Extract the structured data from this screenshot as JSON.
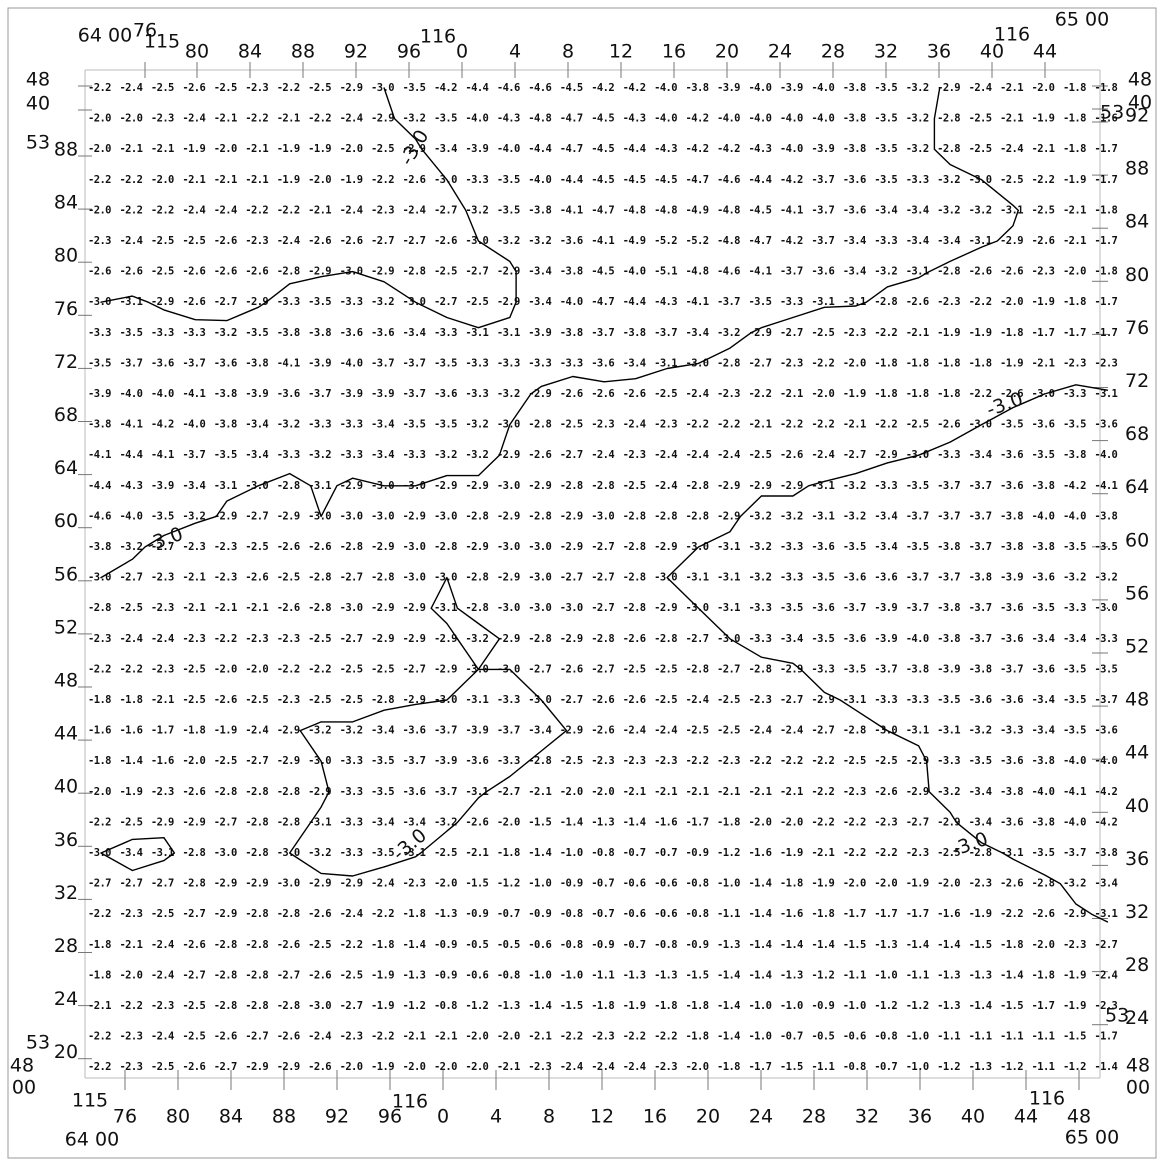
{
  "frame": {
    "top_corners": {
      "left": "64 00",
      "right": "65 00"
    },
    "bottom_corners": {
      "left": "64 00",
      "right": "65 00"
    },
    "top_degree_labels": [
      "115",
      "116",
      "116"
    ],
    "bottom_degree_labels": [
      "115",
      "116",
      "116"
    ],
    "top_x_labels": [
      "76",
      "80",
      "84",
      "88",
      "92",
      "96",
      "0",
      "4",
      "8",
      "12",
      "16",
      "20",
      "24",
      "28",
      "32",
      "36",
      "40",
      "44"
    ],
    "bottom_x_labels": [
      "76",
      "80",
      "84",
      "88",
      "92",
      "96",
      "0",
      "4",
      "8",
      "12",
      "16",
      "20",
      "24",
      "28",
      "32",
      "36",
      "40",
      "44",
      "48"
    ],
    "left_labels": [
      "48",
      "40",
      "88",
      "84",
      "80",
      "76",
      "72",
      "68",
      "64",
      "60",
      "56",
      "52",
      "48",
      "44",
      "40",
      "36",
      "32",
      "28",
      "24",
      "20"
    ],
    "right_labels": [
      "48",
      "40",
      "92",
      "88",
      "84",
      "80",
      "76",
      "72",
      "68",
      "64",
      "60",
      "56",
      "52",
      "48",
      "44",
      "40",
      "36",
      "32",
      "28",
      "24"
    ],
    "left_degree_labels": [
      "53",
      "53"
    ],
    "right_degree_labels": [
      "53",
      "53"
    ],
    "left_bottom_corner": [
      "48",
      "00"
    ],
    "right_bottom_corner": [
      "48",
      "00"
    ]
  },
  "contour_levels": [
    {
      "value": -3,
      "label": "-3.0"
    }
  ],
  "grid": {
    "rows": [
      [
        "-2.2",
        "-2.4",
        "-2.5",
        "-2.6",
        "-2.5",
        "-2.3",
        "-2.2",
        "-2.5",
        "-2.9",
        "-3.0",
        "-3.5",
        "-4.2",
        "-4.4",
        "-4.6",
        "-4.6",
        "-4.5",
        "-4.2",
        "-4.2",
        "-4.0",
        "-3.8",
        "-3.9",
        "-4.0",
        "-3.9",
        "-4.0",
        "-3.8",
        "-3.5",
        "-3.2",
        "-2.9",
        "-2.4",
        "-2.1",
        "-2.0",
        "-1.8",
        "-1.8"
      ],
      [
        "-2.0",
        "-2.0",
        "-2.3",
        "-2.4",
        "-2.1",
        "-2.2",
        "-2.1",
        "-2.2",
        "-2.4",
        "-2.9",
        "-3.2",
        "-3.5",
        "-4.0",
        "-4.3",
        "-4.8",
        "-4.7",
        "-4.5",
        "-4.3",
        "-4.0",
        "-4.2",
        "-4.0",
        "-4.0",
        "-4.0",
        "-4.0",
        "-3.8",
        "-3.5",
        "-3.2",
        "-2.8",
        "-2.5",
        "-2.1",
        "-1.9",
        "-1.8",
        "-1.6"
      ],
      [
        "-2.0",
        "-2.1",
        "-2.1",
        "-1.9",
        "-2.0",
        "-2.1",
        "-1.9",
        "-1.9",
        "-2.0",
        "-2.5",
        "-2.9",
        "-3.4",
        "-3.9",
        "-4.0",
        "-4.4",
        "-4.7",
        "-4.5",
        "-4.4",
        "-4.3",
        "-4.2",
        "-4.2",
        "-4.3",
        "-4.0",
        "-3.9",
        "-3.8",
        "-3.5",
        "-3.2",
        "-2.8",
        "-2.5",
        "-2.4",
        "-2.1",
        "-1.8",
        "-1.7"
      ],
      [
        "-2.2",
        "-2.2",
        "-2.0",
        "-2.1",
        "-2.1",
        "-2.1",
        "-1.9",
        "-2.0",
        "-1.9",
        "-2.2",
        "-2.6",
        "-3.0",
        "-3.3",
        "-3.5",
        "-4.0",
        "-4.4",
        "-4.5",
        "-4.5",
        "-4.5",
        "-4.7",
        "-4.6",
        "-4.4",
        "-4.2",
        "-3.7",
        "-3.6",
        "-3.5",
        "-3.3",
        "-3.2",
        "-3.0",
        "-2.5",
        "-2.2",
        "-1.9",
        "-1.7"
      ],
      [
        "-2.0",
        "-2.2",
        "-2.2",
        "-2.4",
        "-2.4",
        "-2.2",
        "-2.2",
        "-2.1",
        "-2.4",
        "-2.3",
        "-2.4",
        "-2.7",
        "-3.2",
        "-3.5",
        "-3.8",
        "-4.1",
        "-4.7",
        "-4.8",
        "-4.8",
        "-4.9",
        "-4.8",
        "-4.5",
        "-4.1",
        "-3.7",
        "-3.6",
        "-3.4",
        "-3.4",
        "-3.2",
        "-3.2",
        "-3.1",
        "-2.5",
        "-2.1",
        "-1.8"
      ],
      [
        "-2.3",
        "-2.4",
        "-2.5",
        "-2.5",
        "-2.6",
        "-2.3",
        "-2.4",
        "-2.6",
        "-2.6",
        "-2.7",
        "-2.7",
        "-2.6",
        "-3.0",
        "-3.2",
        "-3.2",
        "-3.6",
        "-4.1",
        "-4.9",
        "-5.2",
        "-5.2",
        "-4.8",
        "-4.7",
        "-4.2",
        "-3.7",
        "-3.4",
        "-3.3",
        "-3.4",
        "-3.4",
        "-3.1",
        "-2.9",
        "-2.6",
        "-2.1",
        "-1.7"
      ],
      [
        "-2.6",
        "-2.6",
        "-2.5",
        "-2.6",
        "-2.6",
        "-2.6",
        "-2.8",
        "-2.9",
        "-3.0",
        "-2.9",
        "-2.8",
        "-2.5",
        "-2.7",
        "-2.9",
        "-3.4",
        "-3.8",
        "-4.5",
        "-4.0",
        "-5.1",
        "-4.8",
        "-4.6",
        "-4.1",
        "-3.7",
        "-3.6",
        "-3.4",
        "-3.2",
        "-3.1",
        "-2.8",
        "-2.6",
        "-2.6",
        "-2.3",
        "-2.0",
        "-1.8"
      ],
      [
        "-3.0",
        "-3.1",
        "-2.9",
        "-2.6",
        "-2.7",
        "-2.9",
        "-3.3",
        "-3.5",
        "-3.3",
        "-3.2",
        "-3.0",
        "-2.7",
        "-2.5",
        "-2.9",
        "-3.4",
        "-4.0",
        "-4.7",
        "-4.4",
        "-4.3",
        "-4.1",
        "-3.7",
        "-3.5",
        "-3.3",
        "-3.1",
        "-3.1",
        "-2.8",
        "-2.6",
        "-2.3",
        "-2.2",
        "-2.0",
        "-1.9",
        "-1.8",
        "-1.7"
      ],
      [
        "-3.3",
        "-3.5",
        "-3.3",
        "-3.3",
        "-3.2",
        "-3.5",
        "-3.8",
        "-3.8",
        "-3.6",
        "-3.6",
        "-3.4",
        "-3.3",
        "-3.1",
        "-3.1",
        "-3.9",
        "-3.8",
        "-3.7",
        "-3.8",
        "-3.7",
        "-3.4",
        "-3.2",
        "-2.9",
        "-2.7",
        "-2.5",
        "-2.3",
        "-2.2",
        "-2.1",
        "-1.9",
        "-1.9",
        "-1.8",
        "-1.7",
        "-1.7",
        "-1.7"
      ],
      [
        "-3.5",
        "-3.7",
        "-3.6",
        "-3.7",
        "-3.6",
        "-3.8",
        "-4.1",
        "-3.9",
        "-4.0",
        "-3.7",
        "-3.7",
        "-3.5",
        "-3.3",
        "-3.3",
        "-3.3",
        "-3.3",
        "-3.6",
        "-3.4",
        "-3.1",
        "-3.0",
        "-2.8",
        "-2.7",
        "-2.3",
        "-2.2",
        "-2.0",
        "-1.8",
        "-1.8",
        "-1.8",
        "-1.8",
        "-1.9",
        "-2.1",
        "-2.3",
        "-2.3"
      ],
      [
        "-3.9",
        "-4.0",
        "-4.0",
        "-4.1",
        "-3.8",
        "-3.9",
        "-3.6",
        "-3.7",
        "-3.9",
        "-3.9",
        "-3.7",
        "-3.6",
        "-3.3",
        "-3.2",
        "-2.9",
        "-2.6",
        "-2.6",
        "-2.6",
        "-2.5",
        "-2.4",
        "-2.3",
        "-2.2",
        "-2.1",
        "-2.0",
        "-1.9",
        "-1.8",
        "-1.8",
        "-1.8",
        "-2.2",
        "-2.6",
        "-3.0",
        "-3.3",
        "-3.1"
      ],
      [
        "-3.8",
        "-4.1",
        "-4.2",
        "-4.0",
        "-3.8",
        "-3.4",
        "-3.2",
        "-3.3",
        "-3.3",
        "-3.4",
        "-3.5",
        "-3.5",
        "-3.2",
        "-3.0",
        "-2.8",
        "-2.5",
        "-2.3",
        "-2.4",
        "-2.3",
        "-2.2",
        "-2.2",
        "-2.1",
        "-2.2",
        "-2.2",
        "-2.1",
        "-2.2",
        "-2.5",
        "-2.6",
        "-3.0",
        "-3.5",
        "-3.6",
        "-3.5",
        "-3.6"
      ],
      [
        "-4.1",
        "-4.4",
        "-4.1",
        "-3.7",
        "-3.5",
        "-3.4",
        "-3.3",
        "-3.2",
        "-3.3",
        "-3.4",
        "-3.3",
        "-3.2",
        "-3.2",
        "-2.9",
        "-2.6",
        "-2.7",
        "-2.4",
        "-2.3",
        "-2.4",
        "-2.4",
        "-2.4",
        "-2.5",
        "-2.6",
        "-2.4",
        "-2.7",
        "-2.9",
        "-3.0",
        "-3.3",
        "-3.4",
        "-3.6",
        "-3.5",
        "-3.8",
        "-4.0"
      ],
      [
        "-4.4",
        "-4.3",
        "-3.9",
        "-3.4",
        "-3.1",
        "-3.0",
        "-2.8",
        "-3.1",
        "-2.9",
        "-3.0",
        "-3.0",
        "-2.9",
        "-2.9",
        "-3.0",
        "-2.9",
        "-2.8",
        "-2.8",
        "-2.5",
        "-2.4",
        "-2.8",
        "-2.9",
        "-2.9",
        "-2.9",
        "-3.1",
        "-3.2",
        "-3.3",
        "-3.5",
        "-3.7",
        "-3.7",
        "-3.6",
        "-3.8",
        "-4.2",
        "-4.1"
      ],
      [
        "-4.6",
        "-4.0",
        "-3.5",
        "-3.2",
        "-2.9",
        "-2.7",
        "-2.9",
        "-3.0",
        "-3.0",
        "-3.0",
        "-2.9",
        "-3.0",
        "-2.8",
        "-2.9",
        "-2.8",
        "-2.9",
        "-3.0",
        "-2.8",
        "-2.8",
        "-2.8",
        "-2.9",
        "-3.2",
        "-3.2",
        "-3.1",
        "-3.2",
        "-3.4",
        "-3.7",
        "-3.7",
        "-3.7",
        "-3.8",
        "-4.0",
        "-4.0",
        "-3.8"
      ],
      [
        "-3.8",
        "-3.2",
        "-2.7",
        "-2.3",
        "-2.3",
        "-2.5",
        "-2.6",
        "-2.6",
        "-2.8",
        "-2.9",
        "-3.0",
        "-2.8",
        "-2.9",
        "-3.0",
        "-3.0",
        "-2.9",
        "-2.7",
        "-2.8",
        "-2.9",
        "-3.0",
        "-3.1",
        "-3.2",
        "-3.3",
        "-3.6",
        "-3.5",
        "-3.4",
        "-3.5",
        "-3.8",
        "-3.7",
        "-3.8",
        "-3.8",
        "-3.5",
        "-3.5"
      ],
      [
        "-3.0",
        "-2.7",
        "-2.3",
        "-2.1",
        "-2.3",
        "-2.6",
        "-2.5",
        "-2.8",
        "-2.7",
        "-2.8",
        "-3.0",
        "-3.0",
        "-2.8",
        "-2.9",
        "-3.0",
        "-2.7",
        "-2.7",
        "-2.8",
        "-3.0",
        "-3.1",
        "-3.1",
        "-3.2",
        "-3.3",
        "-3.5",
        "-3.6",
        "-3.6",
        "-3.7",
        "-3.7",
        "-3.8",
        "-3.9",
        "-3.6",
        "-3.2",
        "-3.2"
      ],
      [
        "-2.8",
        "-2.5",
        "-2.3",
        "-2.1",
        "-2.1",
        "-2.1",
        "-2.6",
        "-2.8",
        "-3.0",
        "-2.9",
        "-2.9",
        "-3.1",
        "-2.8",
        "-3.0",
        "-3.0",
        "-3.0",
        "-2.7",
        "-2.8",
        "-2.9",
        "-3.0",
        "-3.1",
        "-3.3",
        "-3.5",
        "-3.6",
        "-3.7",
        "-3.9",
        "-3.7",
        "-3.8",
        "-3.7",
        "-3.6",
        "-3.5",
        "-3.3",
        "-3.0"
      ],
      [
        "-2.3",
        "-2.4",
        "-2.4",
        "-2.3",
        "-2.2",
        "-2.3",
        "-2.3",
        "-2.5",
        "-2.7",
        "-2.9",
        "-2.9",
        "-2.9",
        "-3.2",
        "-2.9",
        "-2.8",
        "-2.9",
        "-2.8",
        "-2.6",
        "-2.8",
        "-2.7",
        "-3.0",
        "-3.3",
        "-3.4",
        "-3.5",
        "-3.6",
        "-3.9",
        "-4.0",
        "-3.8",
        "-3.7",
        "-3.6",
        "-3.4",
        "-3.4",
        "-3.3"
      ],
      [
        "-2.2",
        "-2.2",
        "-2.3",
        "-2.5",
        "-2.0",
        "-2.0",
        "-2.2",
        "-2.2",
        "-2.5",
        "-2.5",
        "-2.7",
        "-2.9",
        "-3.0",
        "-3.0",
        "-2.7",
        "-2.6",
        "-2.7",
        "-2.5",
        "-2.5",
        "-2.8",
        "-2.7",
        "-2.8",
        "-2.9",
        "-3.3",
        "-3.5",
        "-3.7",
        "-3.8",
        "-3.9",
        "-3.8",
        "-3.7",
        "-3.6",
        "-3.5",
        "-3.5"
      ],
      [
        "-1.8",
        "-1.8",
        "-2.1",
        "-2.5",
        "-2.6",
        "-2.5",
        "-2.3",
        "-2.5",
        "-2.5",
        "-2.8",
        "-2.9",
        "-3.0",
        "-3.1",
        "-3.3",
        "-3.0",
        "-2.7",
        "-2.6",
        "-2.6",
        "-2.5",
        "-2.4",
        "-2.5",
        "-2.3",
        "-2.7",
        "-2.9",
        "-3.1",
        "-3.3",
        "-3.3",
        "-3.5",
        "-3.6",
        "-3.6",
        "-3.4",
        "-3.5",
        "-3.7"
      ],
      [
        "-1.6",
        "-1.6",
        "-1.7",
        "-1.8",
        "-1.9",
        "-2.4",
        "-2.9",
        "-3.2",
        "-3.2",
        "-3.4",
        "-3.6",
        "-3.7",
        "-3.9",
        "-3.7",
        "-3.4",
        "-2.9",
        "-2.6",
        "-2.4",
        "-2.4",
        "-2.5",
        "-2.5",
        "-2.4",
        "-2.4",
        "-2.7",
        "-2.8",
        "-3.0",
        "-3.1",
        "-3.1",
        "-3.2",
        "-3.3",
        "-3.4",
        "-3.5",
        "-3.6"
      ],
      [
        "-1.8",
        "-1.4",
        "-1.6",
        "-2.0",
        "-2.5",
        "-2.7",
        "-2.9",
        "-3.0",
        "-3.3",
        "-3.5",
        "-3.7",
        "-3.9",
        "-3.6",
        "-3.3",
        "-2.8",
        "-2.5",
        "-2.3",
        "-2.3",
        "-2.3",
        "-2.2",
        "-2.3",
        "-2.2",
        "-2.2",
        "-2.2",
        "-2.5",
        "-2.5",
        "-2.9",
        "-3.3",
        "-3.5",
        "-3.6",
        "-3.8",
        "-4.0",
        "-4.0"
      ],
      [
        "-2.0",
        "-1.9",
        "-2.3",
        "-2.6",
        "-2.8",
        "-2.8",
        "-2.8",
        "-2.9",
        "-3.3",
        "-3.5",
        "-3.6",
        "-3.7",
        "-3.1",
        "-2.7",
        "-2.1",
        "-2.0",
        "-2.0",
        "-2.1",
        "-2.1",
        "-2.1",
        "-2.1",
        "-2.1",
        "-2.1",
        "-2.2",
        "-2.3",
        "-2.6",
        "-2.9",
        "-3.2",
        "-3.4",
        "-3.8",
        "-4.0",
        "-4.1",
        "-4.2"
      ],
      [
        "-2.2",
        "-2.5",
        "-2.9",
        "-2.9",
        "-2.7",
        "-2.8",
        "-2.8",
        "-3.1",
        "-3.3",
        "-3.4",
        "-3.4",
        "-3.2",
        "-2.6",
        "-2.0",
        "-1.5",
        "-1.4",
        "-1.3",
        "-1.4",
        "-1.6",
        "-1.7",
        "-1.8",
        "-2.0",
        "-2.0",
        "-2.2",
        "-2.2",
        "-2.3",
        "-2.7",
        "-2.9",
        "-3.4",
        "-3.6",
        "-3.8",
        "-4.0",
        "-4.2"
      ],
      [
        "-3.0",
        "-3.4",
        "-3.1",
        "-2.8",
        "-3.0",
        "-2.8",
        "-3.0",
        "-3.2",
        "-3.3",
        "-3.5",
        "-3.1",
        "-2.5",
        "-2.1",
        "-1.8",
        "-1.4",
        "-1.0",
        "-0.8",
        "-0.7",
        "-0.7",
        "-0.9",
        "-1.2",
        "-1.6",
        "-1.9",
        "-2.1",
        "-2.2",
        "-2.2",
        "-2.3",
        "-2.5",
        "-2.8",
        "-3.1",
        "-3.5",
        "-3.7",
        "-3.8"
      ],
      [
        "-2.7",
        "-2.7",
        "-2.7",
        "-2.8",
        "-2.9",
        "-2.9",
        "-3.0",
        "-2.9",
        "-2.9",
        "-2.4",
        "-2.3",
        "-2.0",
        "-1.5",
        "-1.2",
        "-1.0",
        "-0.9",
        "-0.7",
        "-0.6",
        "-0.6",
        "-0.8",
        "-1.0",
        "-1.4",
        "-1.8",
        "-1.9",
        "-2.0",
        "-2.0",
        "-1.9",
        "-2.0",
        "-2.3",
        "-2.6",
        "-2.8",
        "-3.2",
        "-3.4"
      ],
      [
        "-2.2",
        "-2.3",
        "-2.5",
        "-2.7",
        "-2.9",
        "-2.8",
        "-2.8",
        "-2.6",
        "-2.4",
        "-2.2",
        "-1.8",
        "-1.3",
        "-0.9",
        "-0.7",
        "-0.9",
        "-0.8",
        "-0.7",
        "-0.6",
        "-0.6",
        "-0.8",
        "-1.1",
        "-1.4",
        "-1.6",
        "-1.8",
        "-1.7",
        "-1.7",
        "-1.7",
        "-1.6",
        "-1.9",
        "-2.2",
        "-2.6",
        "-2.9",
        "-3.1"
      ],
      [
        "-1.8",
        "-2.1",
        "-2.4",
        "-2.6",
        "-2.8",
        "-2.8",
        "-2.6",
        "-2.5",
        "-2.2",
        "-1.8",
        "-1.4",
        "-0.9",
        "-0.5",
        "-0.5",
        "-0.6",
        "-0.8",
        "-0.9",
        "-0.7",
        "-0.8",
        "-0.9",
        "-1.3",
        "-1.4",
        "-1.4",
        "-1.4",
        "-1.5",
        "-1.3",
        "-1.4",
        "-1.4",
        "-1.5",
        "-1.8",
        "-2.0",
        "-2.3",
        "-2.7"
      ],
      [
        "-1.8",
        "-2.0",
        "-2.4",
        "-2.7",
        "-2.8",
        "-2.8",
        "-2.7",
        "-2.6",
        "-2.5",
        "-1.9",
        "-1.3",
        "-0.9",
        "-0.6",
        "-0.8",
        "-1.0",
        "-1.0",
        "-1.1",
        "-1.3",
        "-1.3",
        "-1.5",
        "-1.4",
        "-1.4",
        "-1.3",
        "-1.2",
        "-1.1",
        "-1.0",
        "-1.1",
        "-1.3",
        "-1.3",
        "-1.4",
        "-1.8",
        "-1.9",
        "-2.4"
      ],
      [
        "-2.1",
        "-2.2",
        "-2.3",
        "-2.5",
        "-2.8",
        "-2.8",
        "-2.8",
        "-3.0",
        "-2.7",
        "-1.9",
        "-1.2",
        "-0.8",
        "-1.2",
        "-1.3",
        "-1.4",
        "-1.5",
        "-1.8",
        "-1.9",
        "-1.8",
        "-1.8",
        "-1.4",
        "-1.0",
        "-1.0",
        "-0.9",
        "-1.0",
        "-1.2",
        "-1.2",
        "-1.3",
        "-1.4",
        "-1.5",
        "-1.7",
        "-1.9",
        "-2.3"
      ],
      [
        "-2.2",
        "-2.3",
        "-2.4",
        "-2.5",
        "-2.6",
        "-2.7",
        "-2.6",
        "-2.4",
        "-2.3",
        "-2.2",
        "-2.1",
        "-2.1",
        "-2.0",
        "-2.0",
        "-2.1",
        "-2.2",
        "-2.3",
        "-2.2",
        "-2.2",
        "-1.8",
        "-1.4",
        "-1.0",
        "-0.7",
        "-0.5",
        "-0.6",
        "-0.8",
        "-1.0",
        "-1.1",
        "-1.1",
        "-1.1",
        "-1.1",
        "-1.5",
        "-1.7"
      ],
      [
        "-2.2",
        "-2.3",
        "-2.5",
        "-2.6",
        "-2.7",
        "-2.9",
        "-2.9",
        "-2.6",
        "-2.0",
        "-1.9",
        "-2.0",
        "-2.0",
        "-2.0",
        "-2.1",
        "-2.3",
        "-2.4",
        "-2.4",
        "-2.4",
        "-2.3",
        "-2.0",
        "-1.8",
        "-1.7",
        "-1.5",
        "-1.1",
        "-0.8",
        "-0.7",
        "-1.0",
        "-1.2",
        "-1.3",
        "-1.2",
        "-1.1",
        "-1.2",
        "-1.4"
      ]
    ]
  }
}
